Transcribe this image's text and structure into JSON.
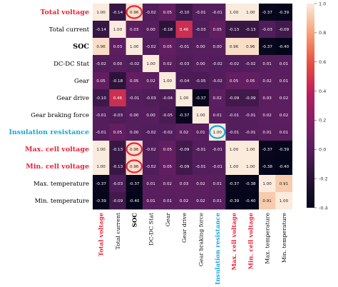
{
  "chart_data": {
    "type": "heatmap",
    "labels": [
      "Total voltage",
      "Total current",
      "SOC",
      "DC-DC Stat",
      "Gear",
      "Gear drive",
      "Gear braking force",
      "Insulation resistance",
      "Max. cell voltage",
      "Min. cell voltage",
      "Max. temperature",
      "Min. temperature"
    ],
    "label_colors": [
      "#e8243c",
      "#000000",
      "#000000",
      "#000000",
      "#000000",
      "#000000",
      "#000000",
      "#1aa7d8",
      "#e8243c",
      "#e8243c",
      "#000000",
      "#000000"
    ],
    "highlighted_labels": [
      "Total voltage",
      "SOC",
      "Insulation resistance",
      "Max. cell voltage",
      "Min. cell voltage"
    ],
    "highlight_color_red": "#e8243c",
    "highlight_color_blue": "#1aa7d8",
    "matrix": [
      [
        1.0,
        -0.14,
        0.96,
        -0.02,
        0.05,
        -0.1,
        -0.01,
        -0.01,
        1.0,
        1.0,
        -0.37,
        -0.39
      ],
      [
        -0.14,
        1.0,
        0.03,
        0.0,
        -0.18,
        0.46,
        -0.03,
        0.05,
        -0.13,
        -0.13,
        -0.03,
        -0.09
      ],
      [
        0.96,
        0.03,
        1.0,
        -0.02,
        0.05,
        -0.01,
        -0.0,
        0.0,
        0.96,
        0.96,
        -0.37,
        -0.4
      ],
      [
        -0.02,
        0.0,
        -0.02,
        1.0,
        0.02,
        -0.03,
        0.0,
        -0.02,
        -0.02,
        -0.02,
        0.01,
        0.01
      ],
      [
        0.05,
        -0.18,
        0.05,
        0.02,
        1.0,
        -0.04,
        -0.05,
        -0.02,
        0.05,
        0.05,
        0.02,
        0.01
      ],
      [
        -0.1,
        0.46,
        -0.01,
        -0.03,
        -0.04,
        1.0,
        -0.37,
        0.02,
        -0.09,
        -0.09,
        0.03,
        0.02
      ],
      [
        -0.01,
        -0.03,
        -0.0,
        0.0,
        -0.05,
        -0.37,
        1.0,
        0.01,
        -0.01,
        -0.01,
        0.02,
        0.02
      ],
      [
        -0.01,
        0.05,
        0.0,
        -0.02,
        -0.02,
        0.02,
        0.01,
        1.0,
        -0.01,
        -0.01,
        0.01,
        0.01
      ],
      [
        1.0,
        -0.13,
        0.96,
        -0.02,
        0.05,
        -0.09,
        -0.01,
        -0.01,
        1.0,
        1.0,
        -0.37,
        -0.39
      ],
      [
        1.0,
        -0.13,
        0.96,
        -0.02,
        0.05,
        -0.09,
        -0.01,
        -0.01,
        1.0,
        1.0,
        -0.38,
        -0.4
      ],
      [
        -0.37,
        -0.03,
        -0.37,
        0.01,
        0.02,
        0.03,
        0.02,
        0.01,
        -0.37,
        -0.38,
        1.0,
        0.91
      ],
      [
        -0.39,
        -0.09,
        -0.4,
        0.01,
        0.01,
        0.02,
        0.02,
        0.01,
        -0.39,
        -0.4,
        0.91,
        1.0
      ]
    ],
    "circled_cells": [
      [
        0,
        2
      ],
      [
        8,
        2
      ],
      [
        9,
        2
      ],
      [
        7,
        7
      ]
    ],
    "colorbar": {
      "min": -0.4,
      "max": 1.0,
      "ticks": [
        "1.0",
        "0.8",
        "0.6",
        "0.4",
        "0.2",
        "0.0",
        "-0.2",
        "-0.4"
      ],
      "tick_values": [
        1.0,
        0.8,
        0.6,
        0.4,
        0.2,
        0.0,
        -0.2,
        -0.4
      ]
    },
    "colormap": "rocket",
    "grid": false
  }
}
